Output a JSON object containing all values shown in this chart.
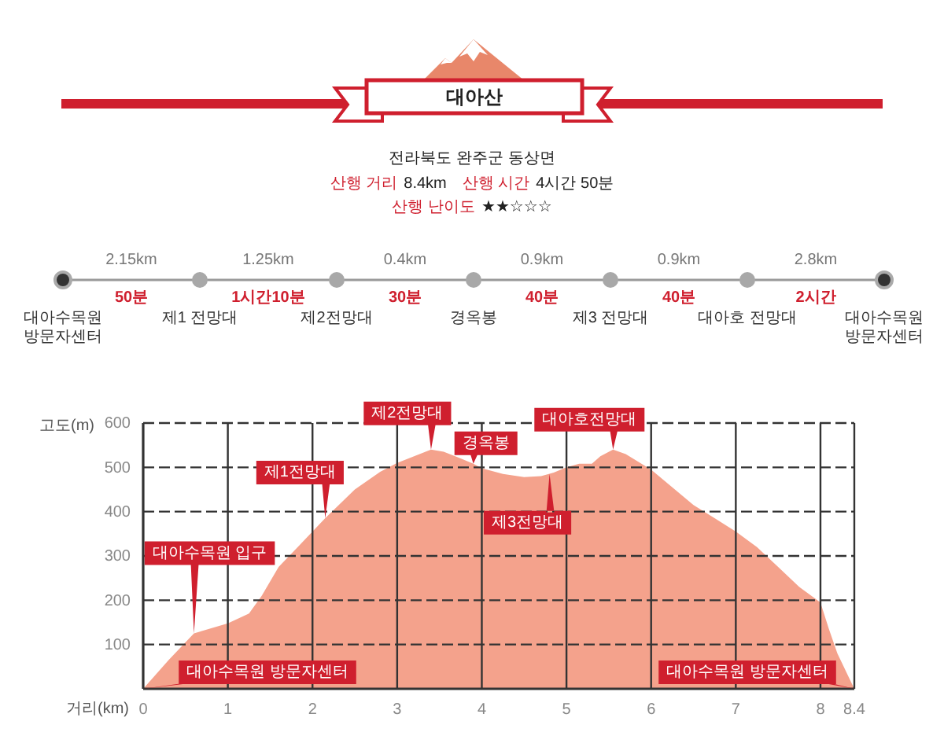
{
  "chart_data": [
    {
      "type": "other",
      "title": "대아산",
      "subtitle": "전라북도 완주군 동상면",
      "annotations": [
        "산행 거리",
        "8.4km",
        "산행 시간",
        "4시간 50분",
        "산행 난이도",
        "★★☆☆☆"
      ]
    },
    {
      "type": "other",
      "categories": [
        "대아수목원 방문자센터",
        "제1 전망대",
        "제2전망대",
        "경옥봉",
        "제3 전망대",
        "대아호 전망대",
        "대아수목원 방문자센터"
      ],
      "annotations": [
        "2.15km",
        "50분",
        "1.25km",
        "1시간10분",
        "0.4km",
        "30분",
        "0.9km",
        "40분",
        "0.9km",
        "40분",
        "2.8km",
        "2시간"
      ]
    },
    {
      "type": "area",
      "xlabel": "거리(km)",
      "ylabel": "고도(m)",
      "color": "#f4a28c",
      "x": [
        0,
        0.3,
        0.6,
        1.0,
        1.25,
        1.4,
        1.6,
        1.85,
        2.15,
        2.5,
        2.8,
        3.0,
        3.2,
        3.4,
        3.55,
        3.75,
        3.9,
        4.0,
        4.25,
        4.5,
        4.7,
        4.85,
        5.0,
        5.15,
        5.3,
        5.4,
        5.55,
        5.7,
        6.0,
        6.25,
        6.5,
        6.75,
        7.0,
        7.25,
        7.5,
        7.75,
        8.0,
        8.1,
        8.2,
        8.4
      ],
      "values": [
        0,
        65,
        125,
        148,
        170,
        210,
        275,
        325,
        385,
        450,
        490,
        510,
        525,
        540,
        535,
        520,
        508,
        498,
        485,
        478,
        480,
        488,
        500,
        508,
        508,
        525,
        540,
        530,
        495,
        455,
        415,
        385,
        355,
        320,
        275,
        230,
        195,
        135,
        80,
        0
      ],
      "xlim": [
        0,
        8.4
      ],
      "xticks": [
        0,
        1,
        2,
        3,
        4,
        5,
        6,
        7,
        8,
        8.4
      ],
      "ylim": [
        0,
        600
      ],
      "yticks": [
        100,
        200,
        300,
        400,
        500,
        600
      ],
      "grid": true,
      "annotations": [
        {
          "text": "대아수목원 방문자센터",
          "x": 0,
          "y": 0
        },
        {
          "text": "대아수목원 입구",
          "x": 0.6,
          "y": 125
        },
        {
          "text": "제1전망대",
          "x": 2.15,
          "y": 385
        },
        {
          "text": "제2전망대",
          "x": 3.4,
          "y": 540
        },
        {
          "text": "경옥봉",
          "x": 3.9,
          "y": 508
        },
        {
          "text": "제3전망대",
          "x": 4.8,
          "y": 485
        },
        {
          "text": "대아호전망대",
          "x": 5.55,
          "y": 540
        },
        {
          "text": "대아수목원 방문자센터",
          "x": 8.4,
          "y": 0
        }
      ]
    }
  ]
}
